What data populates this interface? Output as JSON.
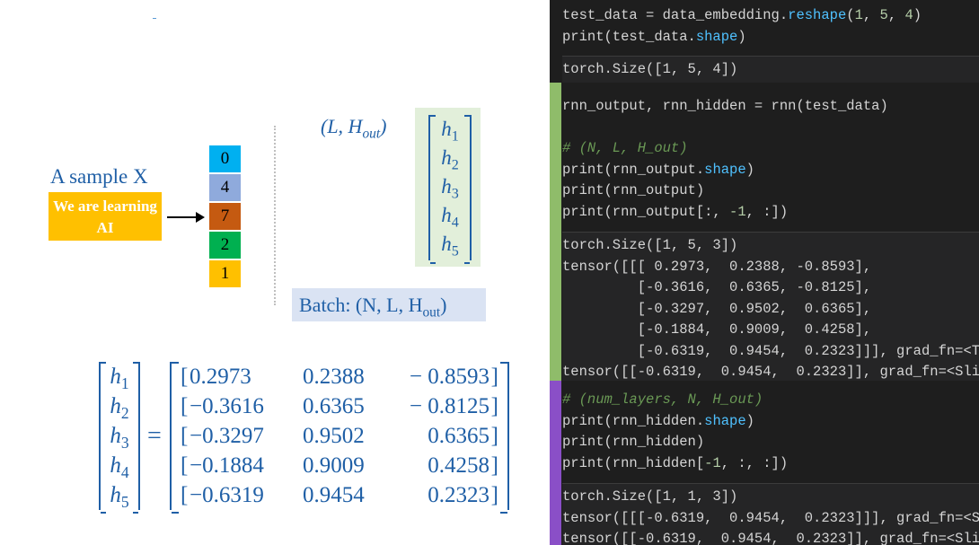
{
  "diagram": {
    "sample_label": "A sample X",
    "sample_text": "We are learning AI",
    "tokens": [
      {
        "value": "0",
        "color": "#00b0f0"
      },
      {
        "value": "4",
        "color": "#8faadc"
      },
      {
        "value": "7",
        "color": "#c55a11"
      },
      {
        "value": "2",
        "color": "#00b050"
      },
      {
        "value": "1",
        "color": "#ffc000"
      }
    ],
    "output_shape_label": "(L, H_out)",
    "h_vector": [
      "h1",
      "h2",
      "h3",
      "h4",
      "h5"
    ],
    "batch_label": "Batch: (N, L, H_out)",
    "matrix": [
      [
        "0.2973",
        "0.2388",
        "− 0.8593"
      ],
      [
        "−0.3616",
        "0.6365",
        "− 0.8125"
      ],
      [
        "−0.3297",
        "0.9502",
        "0.6365"
      ],
      [
        "−0.1884",
        "0.9009",
        "0.4258"
      ],
      [
        "−0.6319",
        "0.9454",
        "0.2323"
      ]
    ],
    "equals": "="
  },
  "code_panel": {
    "cell1_input": [
      "test_data = data_embedding.reshape(1, 5, 4)",
      "print(test_data.shape)"
    ],
    "cell1_output": [
      "torch.Size([1, 5, 4])"
    ],
    "cell2_input": [
      "rnn_output, rnn_hidden = rnn(test_data)",
      "",
      "# (N, L, H_out)",
      "print(rnn_output.shape)",
      "print(rnn_output)",
      "print(rnn_output[:, -1, :])"
    ],
    "cell2_output": [
      "torch.Size([1, 5, 3])",
      "tensor([[[ 0.2973,  0.2388, -0.8593],",
      "         [-0.3616,  0.6365, -0.8125],",
      "         [-0.3297,  0.9502,  0.6365],",
      "         [-0.1884,  0.9009,  0.4258],",
      "         [-0.6319,  0.9454,  0.2323]]], grad_fn=<T",
      "tensor([[-0.6319,  0.9454,  0.2323]], grad_fn=<Sli"
    ],
    "cell3_input": [
      "# (num_layers, N, H_out)",
      "print(rnn_hidden.shape)",
      "print(rnn_hidden)",
      "print(rnn_hidden[-1, :, :])"
    ],
    "cell3_output": [
      "torch.Size([1, 1, 3])",
      "tensor([[[-0.6319,  0.9454,  0.2323]]], grad_fn=<S",
      "tensor([[-0.6319,  0.9454,  0.2323]], grad_fn=<Sli"
    ],
    "colors": {
      "cell2_bar": "#8fbc6a",
      "cell3_bar": "#8a4fc7",
      "background": "#1e1e1e"
    }
  }
}
